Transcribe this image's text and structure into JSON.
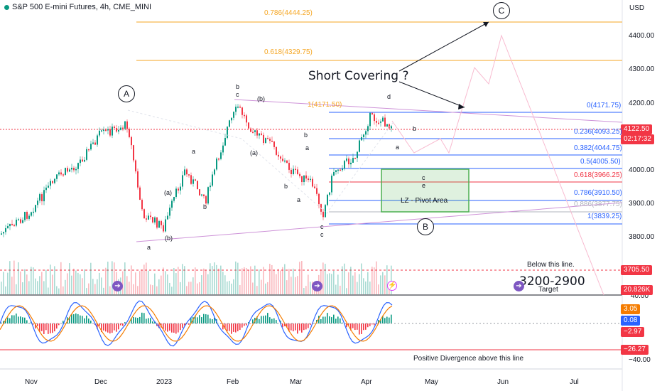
{
  "header": {
    "title": "S&P 500 E-mini Futures, 4h, CME_MINI",
    "currency": "USD"
  },
  "price_axis": {
    "ticks": [
      "4400.00",
      "4300.00",
      "4200.00",
      "4000.00",
      "3900.00",
      "3800.00"
    ]
  },
  "osc_axis": {
    "ticks": [
      "40.00",
      "−40.00"
    ]
  },
  "time_axis": {
    "ticks": [
      "Nov",
      "Dec",
      "2023",
      "Feb",
      "Mar",
      "Apr",
      "May",
      "Jun",
      "Jul"
    ]
  },
  "tags": {
    "last_price": "4122.50",
    "countdown": "02:17:32",
    "target_line": "3705.50",
    "volume": "20.826K",
    "osc1": "3.05",
    "osc2": "0.08",
    "osc3": "−2.97",
    "osc4": "−26.27"
  },
  "fibs": {
    "ext_786": "0.786(4444.25)",
    "ext_618": "0.618(4329.75)",
    "ext_1": "1(4171.50)",
    "r0": "0(4171.75)",
    "r236": "0.236(4093.25)",
    "r382": "0.382(4044.75)",
    "r5": "0.5(4005.50)",
    "r618": "0.618(3966.25)",
    "r786": "0.786(3910.50)",
    "r886": "0.886(3877.75)",
    "r1": "1(3839.25)"
  },
  "annotations": {
    "short_covering": "Short Covering ?",
    "pivot": "LZ - Pivot Area",
    "below": "Below this line.",
    "target_range": "3200-2900",
    "target": "Target",
    "positive_div": "Positive Divergence above this line"
  },
  "waves": {
    "A": "A",
    "B": "B",
    "C": "C",
    "a": "a",
    "b": "b",
    "c": "c",
    "d": "d",
    "e": "e",
    "pa": "(a)",
    "pb": "(b)"
  },
  "colors": {
    "up": "#089981",
    "down": "#f23645",
    "fib_blue": "#2962ff",
    "fib_orange": "#f5a623",
    "fib_red": "#f23645",
    "zone": "#4caf50",
    "purple": "#7e57c2"
  }
}
